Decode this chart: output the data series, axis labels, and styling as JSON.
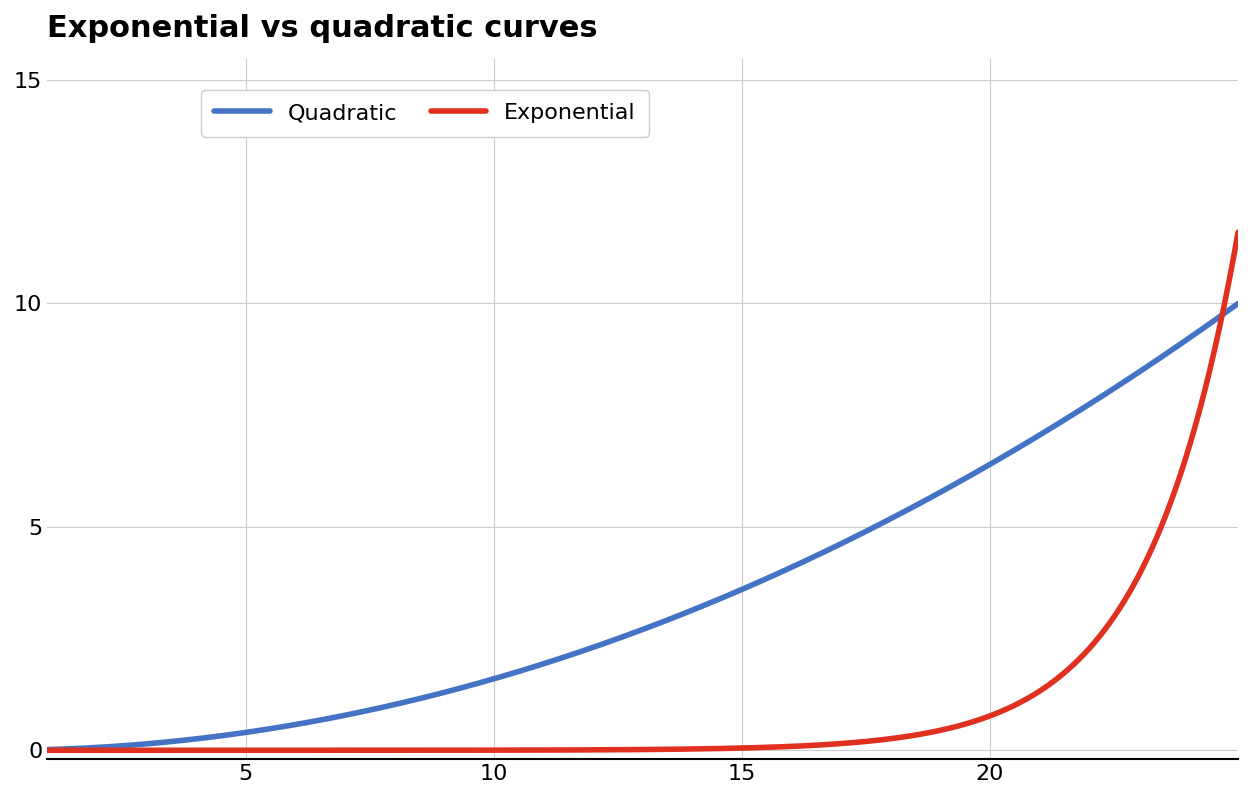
{
  "title": "Exponential vs quadratic curves",
  "title_fontsize": 22,
  "title_fontweight": "bold",
  "background_color": "#ffffff",
  "grid_color": "#cccccc",
  "quadratic_color": "#4472c4",
  "exponential_color": "#e03020",
  "line_width": 4,
  "x_start": 1,
  "x_end": 25,
  "xlim": [
    1,
    25
  ],
  "ylim": [
    -0.2,
    15.5
  ],
  "yticks": [
    0,
    5,
    10,
    15
  ],
  "xticks": [
    5,
    10,
    15,
    20
  ],
  "quadratic_scale": 0.016,
  "quadratic_label": "Quadratic",
  "exponential_label": "Exponential",
  "legend_fontsize": 16,
  "tick_fontsize": 16,
  "exp_base": 1.72,
  "exp_scale": 1.5e-05
}
